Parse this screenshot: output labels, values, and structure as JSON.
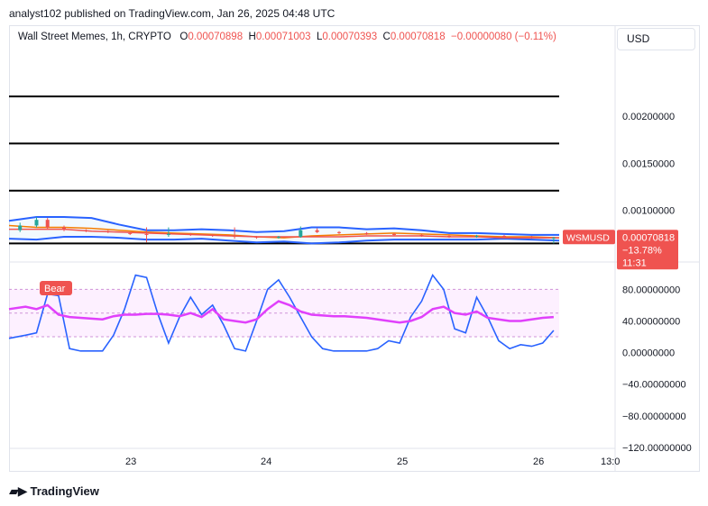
{
  "header": {
    "publisher_line": "analyst102 published on TradingView.com, Jan 26, 2025 04:48 UTC"
  },
  "legend": {
    "symbol_line": "Wall Street Memes, 1h, CRYPTO",
    "open_label": "O",
    "open": "0.00070898",
    "high_label": "H",
    "high": "0.00071003",
    "low_label": "L",
    "low": "0.00070393",
    "close_label": "C",
    "close": "0.00070818",
    "change": "−0.00000080 (−0.11%)"
  },
  "currency_button": "USD",
  "price_badge": {
    "symbol": "WSMUSD",
    "price": "0.00070818",
    "change": "−13.78%",
    "countdown": "11:31",
    "color": "#ef5350"
  },
  "bear_label": "Bear",
  "footer": {
    "brand": "TradingView",
    "logo_icon": "tradingview-logo-icon"
  },
  "chart_data": [
    {
      "type": "line",
      "panel": "price",
      "yaxis_ticks": [
        "0.00200000",
        "0.00150000",
        "0.00100000"
      ],
      "ylim": [
        0.00051,
        0.00266
      ],
      "xaxis_ticks": [
        "23",
        "24",
        "25",
        "26",
        "13:0"
      ],
      "horizontal_lines": [
        0.00221,
        0.00171,
        0.00121,
        0.00065
      ],
      "current_price": 0.00070818,
      "series": [
        {
          "role": "bollinger-upper",
          "color": "#2962ff",
          "x": [
            0,
            5,
            10,
            15,
            20,
            25,
            30,
            35,
            40,
            45,
            50,
            55,
            60,
            65,
            70,
            75,
            80,
            85,
            90,
            95,
            100
          ],
          "values": [
            0.00089,
            0.00093,
            0.00093,
            0.00092,
            0.00085,
            0.00079,
            0.00079,
            0.0008,
            0.00079,
            0.00077,
            0.00078,
            0.00082,
            0.00082,
            0.0008,
            0.00081,
            0.00079,
            0.00076,
            0.00076,
            0.00075,
            0.00074,
            0.00074
          ]
        },
        {
          "role": "bollinger-lower",
          "color": "#2962ff",
          "x": [
            0,
            5,
            10,
            15,
            20,
            25,
            30,
            35,
            40,
            45,
            50,
            55,
            60,
            65,
            70,
            75,
            80,
            85,
            90,
            95,
            100
          ],
          "values": [
            0.0007,
            0.00069,
            0.00072,
            0.00072,
            0.00071,
            0.00069,
            0.00069,
            0.0007,
            0.00068,
            0.00066,
            0.00067,
            0.00065,
            0.00066,
            0.00068,
            0.00069,
            0.00069,
            0.00069,
            0.00069,
            0.0007,
            0.00069,
            0.00068
          ]
        },
        {
          "role": "moving-average",
          "color": "#f57c00",
          "x": [
            0,
            5,
            10,
            15,
            20,
            25,
            30,
            35,
            40,
            45,
            50,
            55,
            60,
            65,
            70,
            75,
            80,
            85,
            90,
            95,
            100
          ],
          "values": [
            0.00084,
            0.00082,
            0.00082,
            0.00081,
            0.00079,
            0.00077,
            0.00076,
            0.00075,
            0.00074,
            0.00072,
            0.00071,
            0.00073,
            0.00074,
            0.00075,
            0.00076,
            0.00075,
            0.00074,
            0.00073,
            0.00072,
            0.00072,
            0.00071
          ]
        },
        {
          "role": "moving-average-slow",
          "color": "#ef5350",
          "x": [
            0,
            5,
            10,
            15,
            20,
            25,
            30,
            35,
            40,
            45,
            50,
            55,
            60,
            65,
            70,
            75,
            80,
            85,
            90,
            95,
            100
          ],
          "values": [
            0.0008,
            0.0008,
            0.0008,
            0.00078,
            0.00077,
            0.00076,
            0.00075,
            0.00074,
            0.00073,
            0.00072,
            0.00072,
            0.00072,
            0.00072,
            0.00073,
            0.00073,
            0.00073,
            0.00072,
            0.00072,
            0.00071,
            0.00071,
            0.00071
          ]
        }
      ],
      "candles": [
        {
          "x": 2,
          "o": 0.00079,
          "c": 0.00084,
          "h": 0.00087,
          "l": 0.00077
        },
        {
          "x": 5,
          "o": 0.00084,
          "c": 0.0009,
          "h": 0.00093,
          "l": 0.00082
        },
        {
          "x": 7,
          "o": 0.0009,
          "c": 0.00082,
          "h": 0.00092,
          "l": 0.0008
        },
        {
          "x": 10,
          "o": 0.00082,
          "c": 0.0008,
          "h": 0.00084,
          "l": 0.00078
        },
        {
          "x": 14,
          "o": 0.00079,
          "c": 0.00078,
          "h": 0.0008,
          "l": 0.00077
        },
        {
          "x": 18,
          "o": 0.00078,
          "c": 0.00077,
          "h": 0.00079,
          "l": 0.00076
        },
        {
          "x": 22,
          "o": 0.00076,
          "c": 0.00075,
          "h": 0.00077,
          "l": 0.00074
        },
        {
          "x": 25,
          "o": 0.00075,
          "c": 0.00074,
          "h": 0.00082,
          "l": 0.00066
        },
        {
          "x": 29,
          "o": 0.00074,
          "c": 0.00075,
          "h": 0.00082,
          "l": 0.00072
        },
        {
          "x": 33,
          "o": 0.00075,
          "c": 0.00074,
          "h": 0.00076,
          "l": 0.00073
        },
        {
          "x": 37,
          "o": 0.00074,
          "c": 0.00073,
          "h": 0.00075,
          "l": 0.00072
        },
        {
          "x": 41,
          "o": 0.00073,
          "c": 0.00072,
          "h": 0.00082,
          "l": 0.0007
        },
        {
          "x": 45,
          "o": 0.00072,
          "c": 0.00071,
          "h": 0.00073,
          "l": 0.0007
        },
        {
          "x": 49,
          "o": 0.00071,
          "c": 0.00072,
          "h": 0.00073,
          "l": 0.0007
        },
        {
          "x": 53,
          "o": 0.00072,
          "c": 0.00079,
          "h": 0.00083,
          "l": 0.00071
        },
        {
          "x": 56,
          "o": 0.00079,
          "c": 0.00077,
          "h": 0.00081,
          "l": 0.00076
        },
        {
          "x": 60,
          "o": 0.00077,
          "c": 0.00076,
          "h": 0.00078,
          "l": 0.00075
        },
        {
          "x": 65,
          "o": 0.00076,
          "c": 0.00075,
          "h": 0.00077,
          "l": 0.00074
        },
        {
          "x": 70,
          "o": 0.00075,
          "c": 0.00074,
          "h": 0.00076,
          "l": 0.00073
        },
        {
          "x": 75,
          "o": 0.00074,
          "c": 0.00073,
          "h": 0.00075,
          "l": 0.00072
        },
        {
          "x": 80,
          "o": 0.00073,
          "c": 0.00072,
          "h": 0.00074,
          "l": 0.00071
        },
        {
          "x": 85,
          "o": 0.00072,
          "c": 0.00073,
          "h": 0.00074,
          "l": 0.00071
        },
        {
          "x": 90,
          "o": 0.00073,
          "c": 0.00072,
          "h": 0.00074,
          "l": 0.00071
        },
        {
          "x": 95,
          "o": 0.00072,
          "c": 0.00071,
          "h": 0.00073,
          "l": 0.0007
        },
        {
          "x": 99,
          "o": 0.00071,
          "c": 0.00071,
          "h": 0.00072,
          "l": 0.00065
        }
      ]
    },
    {
      "type": "line",
      "panel": "stochastic",
      "yaxis_ticks": [
        "80.00000000",
        "40.00000000",
        "0.00000000",
        "−40.00000000",
        "−80.00000000",
        "−120.00000000"
      ],
      "ylim": [
        -120,
        110
      ],
      "band": [
        20,
        80
      ],
      "midline": 50,
      "series": [
        {
          "role": "stoch-k",
          "color": "#2962ff",
          "x": [
            0,
            3,
            5,
            7,
            9,
            11,
            13,
            15,
            17,
            19,
            21,
            23,
            25,
            27,
            29,
            31,
            33,
            35,
            37,
            39,
            41,
            43,
            45,
            47,
            49,
            51,
            53,
            55,
            57,
            59,
            61,
            63,
            65,
            67,
            69,
            71,
            73,
            75,
            77,
            79,
            81,
            83,
            85,
            87,
            89,
            91,
            93,
            95,
            97,
            99
          ],
          "values": [
            18,
            22,
            25,
            74,
            72,
            5,
            2,
            2,
            2,
            22,
            55,
            98,
            95,
            50,
            12,
            45,
            70,
            48,
            60,
            35,
            5,
            2,
            40,
            80,
            92,
            70,
            45,
            20,
            5,
            2,
            2,
            2,
            2,
            5,
            15,
            12,
            45,
            65,
            98,
            80,
            30,
            25,
            70,
            45,
            15,
            5,
            10,
            8,
            12,
            28
          ]
        },
        {
          "role": "stoch-d",
          "color": "#e040fb",
          "x": [
            0,
            3,
            5,
            7,
            9,
            11,
            13,
            15,
            17,
            19,
            21,
            23,
            25,
            27,
            29,
            31,
            33,
            35,
            37,
            39,
            41,
            43,
            45,
            47,
            49,
            51,
            53,
            55,
            57,
            59,
            61,
            63,
            65,
            67,
            69,
            71,
            73,
            75,
            77,
            79,
            81,
            83,
            85,
            87,
            89,
            91,
            93,
            95,
            97,
            99
          ],
          "values": [
            55,
            58,
            55,
            60,
            48,
            45,
            44,
            43,
            42,
            46,
            48,
            48,
            49,
            49,
            48,
            46,
            50,
            45,
            55,
            42,
            40,
            38,
            42,
            55,
            65,
            60,
            52,
            48,
            47,
            46,
            46,
            45,
            44,
            42,
            40,
            38,
            40,
            45,
            55,
            58,
            50,
            48,
            52,
            44,
            42,
            40,
            40,
            42,
            44,
            45
          ]
        }
      ]
    }
  ]
}
